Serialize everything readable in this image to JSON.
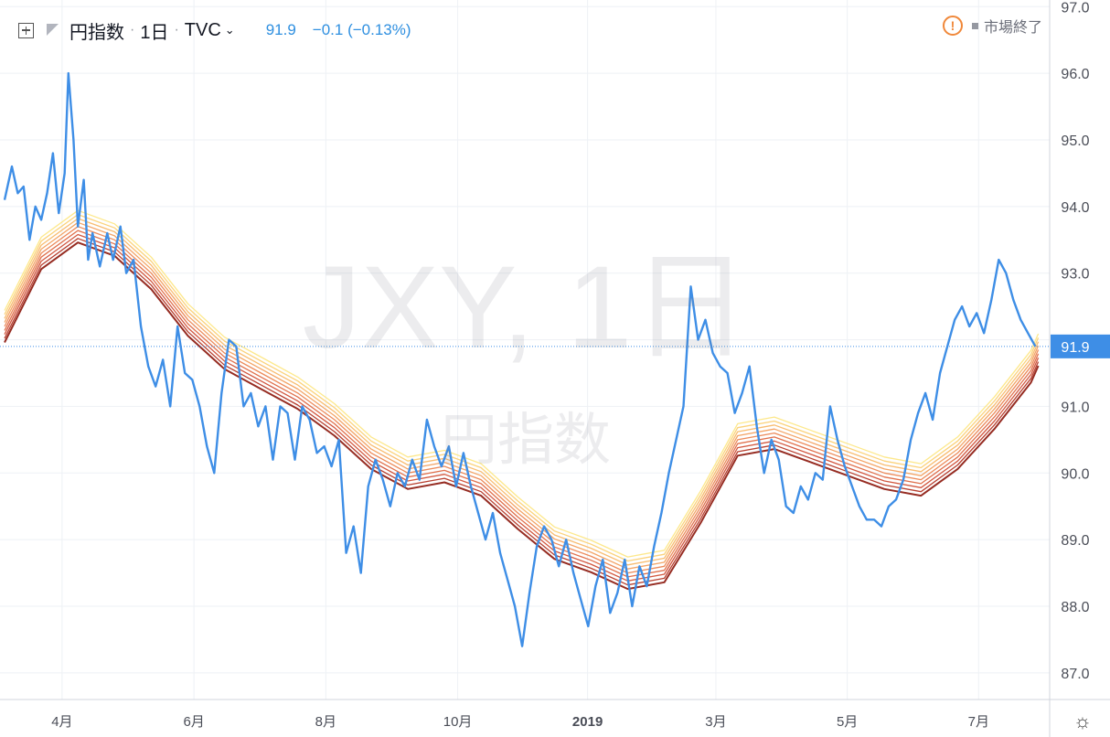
{
  "header": {
    "symbol": "円指数",
    "interval": "1日",
    "exchange": "TVC",
    "price": "91.9",
    "change": "−0.1 (−0.13%)"
  },
  "status": {
    "label": "市場終了"
  },
  "watermark": {
    "ticker": "JXY, 1日",
    "name": "円指数"
  },
  "colors": {
    "price_line": "#3e8ee6",
    "ribbon": [
      "#fde88b",
      "#fbd27a",
      "#f8bc70",
      "#f3a466",
      "#ec8a5a",
      "#e0704c",
      "#d2573f",
      "#b73f2f",
      "#962c22"
    ],
    "price_label_bg": "#3e8ee6"
  },
  "chart_data": {
    "type": "line",
    "x_axis_labels": [
      "4月",
      "6月",
      "8月",
      "10月",
      "2019",
      "3月",
      "5月",
      "7月"
    ],
    "y_axis_labels": [
      "87.0",
      "88.0",
      "89.0",
      "90.0",
      "91.0",
      "92.0",
      "93.0",
      "94.0",
      "95.0",
      "96.0",
      "97.0"
    ],
    "ylim": [
      86.6,
      97.1
    ],
    "last_price_label": "91.9",
    "last_price": 91.9,
    "series": [
      {
        "kind": "price",
        "points": [
          [
            0.0,
            94.1
          ],
          [
            0.01,
            94.6
          ],
          [
            0.018,
            94.2
          ],
          [
            0.026,
            94.3
          ],
          [
            0.034,
            93.5
          ],
          [
            0.042,
            94.0
          ],
          [
            0.05,
            93.8
          ],
          [
            0.058,
            94.2
          ],
          [
            0.066,
            94.8
          ],
          [
            0.074,
            93.9
          ],
          [
            0.082,
            94.5
          ],
          [
            0.087,
            96.0
          ],
          [
            0.094,
            95.0
          ],
          [
            0.1,
            93.7
          ],
          [
            0.108,
            94.4
          ],
          [
            0.114,
            93.2
          ],
          [
            0.12,
            93.6
          ],
          [
            0.13,
            93.1
          ],
          [
            0.14,
            93.6
          ],
          [
            0.148,
            93.2
          ],
          [
            0.158,
            93.7
          ],
          [
            0.166,
            93.0
          ],
          [
            0.176,
            93.2
          ],
          [
            0.186,
            92.2
          ],
          [
            0.196,
            91.6
          ],
          [
            0.206,
            91.3
          ],
          [
            0.216,
            91.7
          ],
          [
            0.226,
            91.0
          ],
          [
            0.236,
            92.2
          ],
          [
            0.246,
            91.5
          ],
          [
            0.256,
            91.4
          ],
          [
            0.266,
            91.0
          ],
          [
            0.276,
            90.4
          ],
          [
            0.286,
            90.0
          ],
          [
            0.296,
            91.2
          ],
          [
            0.306,
            92.0
          ],
          [
            0.316,
            91.9
          ],
          [
            0.326,
            91.0
          ],
          [
            0.336,
            91.2
          ],
          [
            0.346,
            90.7
          ],
          [
            0.356,
            91.0
          ],
          [
            0.366,
            90.2
          ],
          [
            0.376,
            91.0
          ],
          [
            0.386,
            90.9
          ],
          [
            0.396,
            90.2
          ],
          [
            0.406,
            91.0
          ],
          [
            0.416,
            90.8
          ],
          [
            0.426,
            90.3
          ],
          [
            0.436,
            90.4
          ],
          [
            0.446,
            90.1
          ],
          [
            0.456,
            90.5
          ],
          [
            0.466,
            88.8
          ],
          [
            0.476,
            89.2
          ],
          [
            0.486,
            88.5
          ],
          [
            0.496,
            89.8
          ],
          [
            0.506,
            90.2
          ],
          [
            0.516,
            89.9
          ],
          [
            0.526,
            89.5
          ],
          [
            0.536,
            90.0
          ],
          [
            0.546,
            89.8
          ],
          [
            0.556,
            90.2
          ],
          [
            0.566,
            89.9
          ],
          [
            0.576,
            90.8
          ],
          [
            0.586,
            90.4
          ],
          [
            0.596,
            90.1
          ],
          [
            0.606,
            90.4
          ],
          [
            0.616,
            89.8
          ],
          [
            0.626,
            90.3
          ],
          [
            0.636,
            89.8
          ],
          [
            0.646,
            89.4
          ],
          [
            0.656,
            89.0
          ],
          [
            0.666,
            89.4
          ],
          [
            0.676,
            88.8
          ],
          [
            0.686,
            88.4
          ],
          [
            0.696,
            88.0
          ],
          [
            0.706,
            87.4
          ],
          [
            0.716,
            88.2
          ],
          [
            0.726,
            88.9
          ],
          [
            0.736,
            89.2
          ],
          [
            0.746,
            89.0
          ],
          [
            0.756,
            88.6
          ],
          [
            0.766,
            89.0
          ],
          [
            0.776,
            88.5
          ],
          [
            0.786,
            88.1
          ],
          [
            0.796,
            87.7
          ],
          [
            0.806,
            88.3
          ],
          [
            0.816,
            88.7
          ],
          [
            0.826,
            87.9
          ],
          [
            0.836,
            88.2
          ],
          [
            0.846,
            88.7
          ],
          [
            0.856,
            88.0
          ],
          [
            0.866,
            88.6
          ],
          [
            0.876,
            88.3
          ],
          [
            0.886,
            88.9
          ],
          [
            0.896,
            89.4
          ],
          [
            0.906,
            90.0
          ],
          [
            0.916,
            90.5
          ],
          [
            0.926,
            91.0
          ],
          [
            0.936,
            92.8
          ],
          [
            0.946,
            92.0
          ],
          [
            0.956,
            92.3
          ],
          [
            0.966,
            91.8
          ],
          [
            0.976,
            91.6
          ],
          [
            0.986,
            91.5
          ],
          [
            0.996,
            90.9
          ],
          [
            1.006,
            91.2
          ],
          [
            1.016,
            91.6
          ],
          [
            1.026,
            90.7
          ],
          [
            1.036,
            90.0
          ],
          [
            1.046,
            90.5
          ],
          [
            1.056,
            90.2
          ],
          [
            1.066,
            89.5
          ],
          [
            1.076,
            89.4
          ],
          [
            1.086,
            89.8
          ],
          [
            1.096,
            89.6
          ],
          [
            1.106,
            90.0
          ],
          [
            1.116,
            89.9
          ],
          [
            1.126,
            91.0
          ],
          [
            1.136,
            90.5
          ],
          [
            1.146,
            90.1
          ],
          [
            1.156,
            89.8
          ],
          [
            1.166,
            89.5
          ],
          [
            1.176,
            89.3
          ],
          [
            1.186,
            89.3
          ],
          [
            1.196,
            89.2
          ],
          [
            1.206,
            89.5
          ],
          [
            1.216,
            89.6
          ],
          [
            1.226,
            89.9
          ],
          [
            1.236,
            90.5
          ],
          [
            1.246,
            90.9
          ],
          [
            1.256,
            91.2
          ],
          [
            1.266,
            90.8
          ],
          [
            1.276,
            91.5
          ],
          [
            1.286,
            91.9
          ],
          [
            1.296,
            92.3
          ],
          [
            1.306,
            92.5
          ],
          [
            1.316,
            92.2
          ],
          [
            1.326,
            92.4
          ],
          [
            1.336,
            92.1
          ],
          [
            1.346,
            92.6
          ],
          [
            1.356,
            93.2
          ],
          [
            1.366,
            93.0
          ],
          [
            1.376,
            92.6
          ],
          [
            1.386,
            92.3
          ],
          [
            1.396,
            92.1
          ],
          [
            1.406,
            91.9
          ]
        ]
      },
      {
        "kind": "ribbon-center",
        "points": [
          [
            0.0,
            92.2
          ],
          [
            0.05,
            93.3
          ],
          [
            0.1,
            93.7
          ],
          [
            0.15,
            93.5
          ],
          [
            0.2,
            93.0
          ],
          [
            0.25,
            92.3
          ],
          [
            0.3,
            91.8
          ],
          [
            0.35,
            91.5
          ],
          [
            0.4,
            91.2
          ],
          [
            0.45,
            90.8
          ],
          [
            0.5,
            90.3
          ],
          [
            0.55,
            90.0
          ],
          [
            0.6,
            90.1
          ],
          [
            0.65,
            89.9
          ],
          [
            0.7,
            89.4
          ],
          [
            0.75,
            88.95
          ],
          [
            0.8,
            88.75
          ],
          [
            0.85,
            88.5
          ],
          [
            0.9,
            88.6
          ],
          [
            0.95,
            89.5
          ],
          [
            1.0,
            90.5
          ],
          [
            1.05,
            90.6
          ],
          [
            1.1,
            90.4
          ],
          [
            1.15,
            90.2
          ],
          [
            1.2,
            90.0
          ],
          [
            1.25,
            89.9
          ],
          [
            1.3,
            90.3
          ],
          [
            1.35,
            90.9
          ],
          [
            1.4,
            91.6
          ],
          [
            1.41,
            91.85
          ]
        ]
      }
    ]
  }
}
